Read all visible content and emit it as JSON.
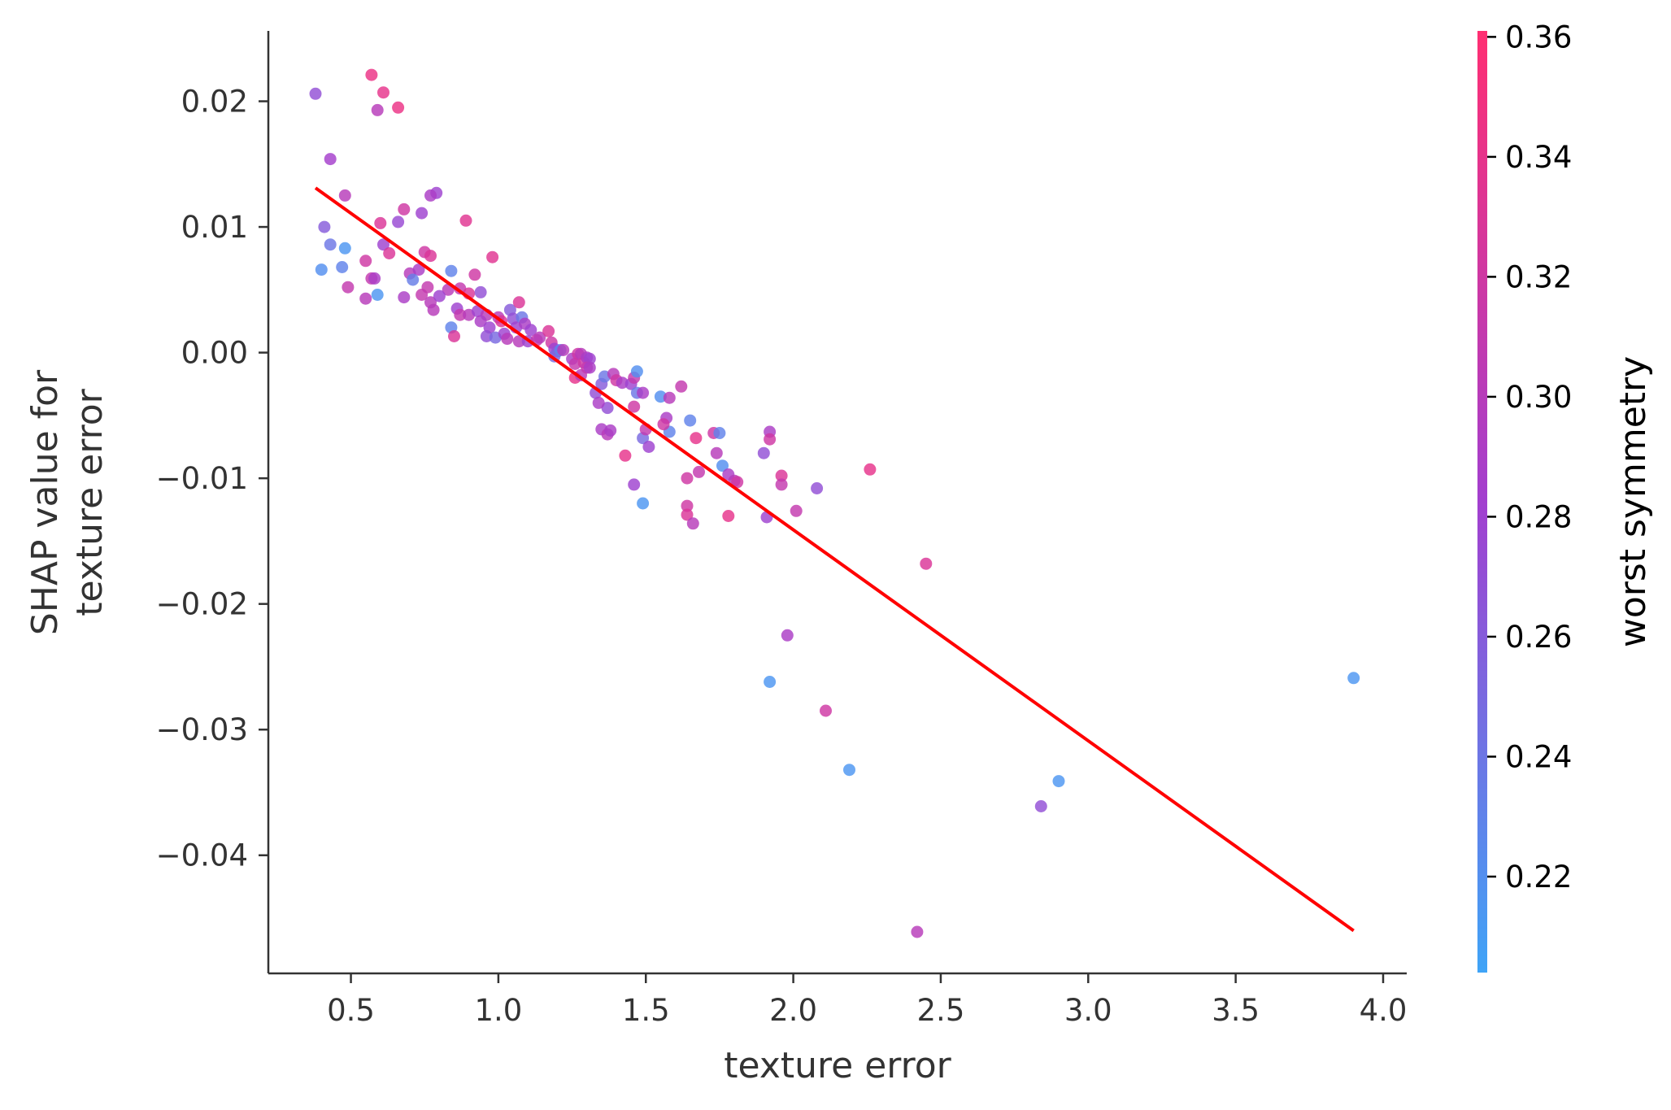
{
  "chart_data": {
    "type": "scatter",
    "title": "",
    "xlabel": "texture error",
    "ylabel": [
      "SHAP value for",
      "texture error"
    ],
    "xlim": [
      0.22,
      4.08
    ],
    "ylim": [
      -0.0494,
      0.0256
    ],
    "xticks": [
      0.5,
      1.0,
      1.5,
      2.0,
      2.5,
      3.0,
      3.5,
      4.0
    ],
    "xtick_labels": [
      "0.5",
      "1.0",
      "1.5",
      "2.0",
      "2.5",
      "3.0",
      "3.5",
      "4.0"
    ],
    "yticks": [
      0.02,
      0.01,
      0.0,
      -0.01,
      -0.02,
      -0.03,
      -0.04
    ],
    "ytick_labels": [
      "0.02",
      "0.01",
      "0.00",
      "−0.01",
      "−0.02",
      "−0.03",
      "−0.04"
    ],
    "grid": false,
    "colorbar": {
      "label": "worst symmetry",
      "range": [
        0.204,
        0.361
      ],
      "ticks": [
        0.22,
        0.24,
        0.26,
        0.28,
        0.3,
        0.32,
        0.34,
        0.36
      ],
      "tick_labels": [
        "0.22",
        "0.24",
        "0.26",
        "0.28",
        "0.30",
        "0.32",
        "0.34",
        "0.36"
      ],
      "color_low": "#3fa4f7",
      "color_mid": "#a23fcf",
      "color_high": "#ff2f72"
    },
    "trend_line": {
      "x": [
        0.38,
        3.9
      ],
      "y": [
        0.0131,
        -0.046
      ],
      "color": "#ff0000"
    },
    "points": [
      [
        0.38,
        0.0206,
        0.27
      ],
      [
        0.57,
        0.0221,
        0.345
      ],
      [
        0.61,
        0.0207,
        0.34
      ],
      [
        0.59,
        0.0193,
        0.3
      ],
      [
        0.66,
        0.0195,
        0.345
      ],
      [
        0.43,
        0.0154,
        0.285
      ],
      [
        0.48,
        0.0125,
        0.3
      ],
      [
        0.79,
        0.0127,
        0.28
      ],
      [
        0.77,
        0.0125,
        0.29
      ],
      [
        0.68,
        0.0114,
        0.32
      ],
      [
        0.74,
        0.0111,
        0.28
      ],
      [
        0.66,
        0.0104,
        0.275
      ],
      [
        0.6,
        0.0103,
        0.33
      ],
      [
        0.89,
        0.0105,
        0.335
      ],
      [
        0.41,
        0.01,
        0.26
      ],
      [
        0.43,
        0.0086,
        0.24
      ],
      [
        0.48,
        0.0083,
        0.215
      ],
      [
        0.61,
        0.0086,
        0.28
      ],
      [
        0.63,
        0.0079,
        0.33
      ],
      [
        0.75,
        0.008,
        0.32
      ],
      [
        0.77,
        0.0077,
        0.33
      ],
      [
        0.98,
        0.0076,
        0.335
      ],
      [
        0.55,
        0.0073,
        0.32
      ],
      [
        0.4,
        0.0066,
        0.22
      ],
      [
        0.47,
        0.0068,
        0.23
      ],
      [
        0.7,
        0.0063,
        0.3
      ],
      [
        0.73,
        0.0066,
        0.29
      ],
      [
        0.84,
        0.0065,
        0.23
      ],
      [
        0.92,
        0.0062,
        0.32
      ],
      [
        0.57,
        0.0059,
        0.31
      ],
      [
        0.58,
        0.0059,
        0.29
      ],
      [
        0.71,
        0.0058,
        0.235
      ],
      [
        0.49,
        0.0052,
        0.31
      ],
      [
        0.76,
        0.0052,
        0.31
      ],
      [
        0.83,
        0.005,
        0.3
      ],
      [
        0.87,
        0.0051,
        0.31
      ],
      [
        0.9,
        0.0047,
        0.33
      ],
      [
        0.94,
        0.0048,
        0.27
      ],
      [
        0.59,
        0.0046,
        0.215
      ],
      [
        0.55,
        0.0043,
        0.3
      ],
      [
        0.68,
        0.0044,
        0.29
      ],
      [
        0.74,
        0.0046,
        0.31
      ],
      [
        0.77,
        0.004,
        0.3
      ],
      [
        0.78,
        0.0034,
        0.3
      ],
      [
        0.8,
        0.0045,
        0.28
      ],
      [
        0.86,
        0.0035,
        0.28
      ],
      [
        0.87,
        0.003,
        0.31
      ],
      [
        0.9,
        0.003,
        0.3
      ],
      [
        0.93,
        0.0033,
        0.28
      ],
      [
        0.96,
        0.003,
        0.3
      ],
      [
        0.84,
        0.002,
        0.23
      ],
      [
        0.85,
        0.0013,
        0.33
      ],
      [
        0.94,
        0.0025,
        0.29
      ],
      [
        0.97,
        0.002,
        0.28
      ],
      [
        0.96,
        0.0013,
        0.27
      ],
      [
        0.99,
        0.0012,
        0.25
      ],
      [
        1.0,
        0.0028,
        0.3
      ],
      [
        1.01,
        0.0025,
        0.33
      ],
      [
        1.02,
        0.0015,
        0.28
      ],
      [
        1.03,
        0.0011,
        0.3
      ],
      [
        1.04,
        0.0034,
        0.26
      ],
      [
        1.05,
        0.0027,
        0.27
      ],
      [
        1.06,
        0.002,
        0.28
      ],
      [
        1.07,
        0.004,
        0.33
      ],
      [
        1.08,
        0.0028,
        0.24
      ],
      [
        1.07,
        0.0009,
        0.3
      ],
      [
        1.09,
        0.0023,
        0.29
      ],
      [
        1.11,
        0.0018,
        0.28
      ],
      [
        1.1,
        0.0009,
        0.28
      ],
      [
        1.13,
        0.001,
        0.31
      ],
      [
        1.14,
        0.0012,
        0.3
      ],
      [
        1.17,
        0.0017,
        0.33
      ],
      [
        1.18,
        0.0008,
        0.32
      ],
      [
        1.19,
        0.0003,
        0.28
      ],
      [
        1.2,
        0.0001,
        0.27
      ],
      [
        1.19,
        -0.0003,
        0.25
      ],
      [
        1.21,
        0.0002,
        0.23
      ],
      [
        1.22,
        0.0002,
        0.3
      ],
      [
        1.25,
        -0.0005,
        0.29
      ],
      [
        1.26,
        -0.0009,
        0.31
      ],
      [
        1.27,
        -0.0001,
        0.32
      ],
      [
        1.28,
        -0.0001,
        0.3
      ],
      [
        1.29,
        -0.0008,
        0.32
      ],
      [
        1.3,
        -0.0004,
        0.29
      ],
      [
        1.31,
        -0.0005,
        0.28
      ],
      [
        1.26,
        -0.002,
        0.34
      ],
      [
        1.28,
        -0.0018,
        0.3
      ],
      [
        1.3,
        -0.0012,
        0.31
      ],
      [
        1.31,
        -0.0012,
        0.29
      ],
      [
        1.33,
        -0.0032,
        0.27
      ],
      [
        1.35,
        -0.0025,
        0.26
      ],
      [
        1.36,
        -0.0019,
        0.24
      ],
      [
        1.37,
        -0.0044,
        0.27
      ],
      [
        1.34,
        -0.004,
        0.29
      ],
      [
        1.39,
        -0.0017,
        0.3
      ],
      [
        1.4,
        -0.0022,
        0.32
      ],
      [
        1.42,
        -0.0024,
        0.29
      ],
      [
        1.45,
        -0.0025,
        0.28
      ],
      [
        1.46,
        -0.002,
        0.31
      ],
      [
        1.47,
        -0.0015,
        0.22
      ],
      [
        1.47,
        -0.0032,
        0.24
      ],
      [
        1.49,
        -0.0032,
        0.29
      ],
      [
        1.46,
        -0.0043,
        0.32
      ],
      [
        1.35,
        -0.0061,
        0.29
      ],
      [
        1.37,
        -0.0065,
        0.3
      ],
      [
        1.38,
        -0.0062,
        0.29
      ],
      [
        1.49,
        -0.0068,
        0.25
      ],
      [
        1.5,
        -0.0061,
        0.31
      ],
      [
        1.51,
        -0.0075,
        0.28
      ],
      [
        1.43,
        -0.0082,
        0.34
      ],
      [
        1.46,
        -0.0105,
        0.28
      ],
      [
        1.49,
        -0.012,
        0.215
      ],
      [
        1.55,
        -0.0035,
        0.22
      ],
      [
        1.57,
        -0.0052,
        0.29
      ],
      [
        1.58,
        -0.0036,
        0.3
      ],
      [
        1.62,
        -0.0027,
        0.31
      ],
      [
        1.58,
        -0.0063,
        0.23
      ],
      [
        1.56,
        -0.0057,
        0.32
      ],
      [
        1.65,
        -0.0054,
        0.23
      ],
      [
        1.67,
        -0.0068,
        0.34
      ],
      [
        1.73,
        -0.0064,
        0.32
      ],
      [
        1.75,
        -0.0064,
        0.23
      ],
      [
        1.74,
        -0.008,
        0.3
      ],
      [
        1.76,
        -0.009,
        0.22
      ],
      [
        1.78,
        -0.0097,
        0.29
      ],
      [
        1.8,
        -0.0102,
        0.3
      ],
      [
        1.81,
        -0.0103,
        0.32
      ],
      [
        1.64,
        -0.01,
        0.32
      ],
      [
        1.68,
        -0.0095,
        0.31
      ],
      [
        1.64,
        -0.0122,
        0.32
      ],
      [
        1.64,
        -0.0129,
        0.33
      ],
      [
        1.66,
        -0.0136,
        0.3
      ],
      [
        1.78,
        -0.013,
        0.34
      ],
      [
        1.9,
        -0.008,
        0.27
      ],
      [
        1.92,
        -0.0063,
        0.29
      ],
      [
        1.92,
        -0.0069,
        0.32
      ],
      [
        1.96,
        -0.0098,
        0.33
      ],
      [
        1.96,
        -0.0105,
        0.31
      ],
      [
        1.91,
        -0.0131,
        0.28
      ],
      [
        2.01,
        -0.0126,
        0.31
      ],
      [
        2.08,
        -0.0108,
        0.27
      ],
      [
        2.26,
        -0.0093,
        0.34
      ],
      [
        2.45,
        -0.0168,
        0.33
      ],
      [
        1.98,
        -0.0225,
        0.29
      ],
      [
        1.92,
        -0.0262,
        0.215
      ],
      [
        2.11,
        -0.0285,
        0.32
      ],
      [
        2.19,
        -0.0332,
        0.215
      ],
      [
        2.9,
        -0.0341,
        0.215
      ],
      [
        2.84,
        -0.0361,
        0.27
      ],
      [
        2.42,
        -0.0461,
        0.3
      ],
      [
        3.9,
        -0.0259,
        0.215
      ]
    ]
  }
}
